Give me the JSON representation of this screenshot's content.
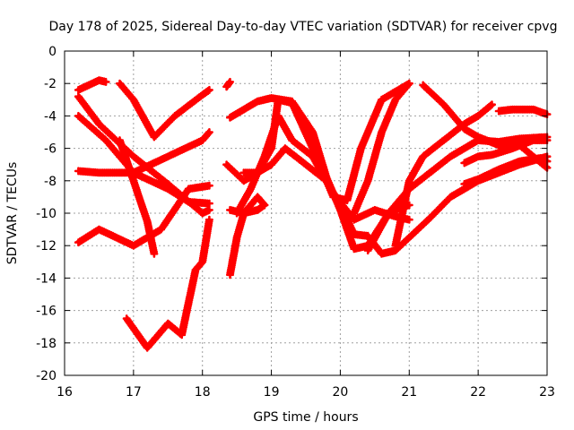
{
  "chart_data": {
    "type": "scatter",
    "title": "Day 178 of 2025, Sidereal Day-to-day VTEC variation (SDTVAR) for receiver cpvg",
    "xlabel": "GPS time / hours",
    "ylabel": "SDTVAR / TECUs",
    "xlim": [
      16,
      23
    ],
    "ylim": [
      -20,
      0
    ],
    "xticks": [
      "16",
      "17",
      "18",
      "19",
      "20",
      "21",
      "22",
      "23"
    ],
    "yticks": [
      "0",
      "-2",
      "-4",
      "-6",
      "-8",
      "-10",
      "-12",
      "-14",
      "-16",
      "-18",
      "-20"
    ],
    "xtick_values": [
      16,
      17,
      18,
      19,
      20,
      21,
      22,
      23
    ],
    "ytick_values": [
      0,
      -2,
      -4,
      -6,
      -8,
      -10,
      -12,
      -14,
      -16,
      -18,
      -20
    ],
    "grid": true,
    "marker": "+",
    "color": "#ff0000",
    "series": [
      {
        "name": "trace-1",
        "x": [
          16.2,
          16.35,
          16.5,
          16.6
        ],
        "y": [
          -2.4,
          -2.1,
          -1.8,
          -1.9
        ]
      },
      {
        "name": "trace-2",
        "x": [
          16.2,
          16.5,
          17.0,
          17.5,
          18.0,
          18.1
        ],
        "y": [
          -2.8,
          -4.5,
          -6.5,
          -8.2,
          -10.0,
          -9.8
        ]
      },
      {
        "name": "trace-3",
        "x": [
          16.2,
          16.6,
          17.0,
          17.5,
          17.8,
          18.1
        ],
        "y": [
          -4.0,
          -5.5,
          -7.5,
          -8.5,
          -9.3,
          -9.4
        ]
      },
      {
        "name": "trace-4",
        "x": [
          16.2,
          16.5,
          17.0,
          17.3,
          17.6,
          18.0,
          18.1
        ],
        "y": [
          -7.4,
          -7.5,
          -7.5,
          -6.9,
          -6.3,
          -5.5,
          -5.0
        ]
      },
      {
        "name": "trace-5",
        "x": [
          16.2,
          16.5,
          17.0,
          17.4,
          17.8,
          18.1
        ],
        "y": [
          -11.8,
          -11.0,
          -12.0,
          -11.0,
          -8.5,
          -8.3
        ]
      },
      {
        "name": "trace-6",
        "x": [
          16.8,
          17.0,
          17.3,
          17.6,
          18.0,
          18.1
        ],
        "y": [
          -2.0,
          -3.0,
          -5.3,
          -4.0,
          -2.7,
          -2.4
        ]
      },
      {
        "name": "trace-7",
        "x": [
          16.8,
          17.0,
          17.2,
          17.3
        ],
        "y": [
          -5.5,
          -8.0,
          -10.5,
          -12.5
        ]
      },
      {
        "name": "trace-8",
        "x": [
          16.9,
          17.2,
          17.5,
          17.7,
          17.9,
          18.0,
          18.1
        ],
        "y": [
          -16.5,
          -18.3,
          -16.8,
          -17.5,
          -13.5,
          -13.0,
          -10.4
        ]
      },
      {
        "name": "trace-9",
        "x": [
          18.35,
          18.4
        ],
        "y": [
          -2.2,
          -1.9
        ]
      },
      {
        "name": "trace-10",
        "x": [
          18.4,
          18.6,
          18.8,
          19.0,
          19.3,
          19.6,
          19.8,
          20.0,
          20.2,
          20.4,
          20.7,
          20.9,
          21.0
        ],
        "y": [
          -4.1,
          -3.6,
          -3.1,
          -2.9,
          -3.1,
          -5.0,
          -7.8,
          -9.8,
          -12.2,
          -12.0,
          -10.0,
          -9.6,
          -9.5
        ]
      },
      {
        "name": "trace-11",
        "x": [
          18.35,
          18.6,
          18.8,
          19.0,
          19.1,
          19.3,
          19.6,
          19.9,
          20.1,
          20.3,
          20.6,
          21.0
        ],
        "y": [
          -7.0,
          -8.0,
          -7.5,
          -6.0,
          -3.0,
          -3.2,
          -6.0,
          -9.0,
          -9.2,
          -6.0,
          -3.0,
          -2.0
        ]
      },
      {
        "name": "trace-12",
        "x": [
          18.4,
          18.6,
          18.8,
          18.9
        ],
        "y": [
          -9.8,
          -10.0,
          -9.0,
          -9.5
        ]
      },
      {
        "name": "trace-13",
        "x": [
          18.4,
          18.5,
          18.6,
          18.8,
          18.9
        ],
        "y": [
          -13.8,
          -11.5,
          -10.0,
          -9.8,
          -9.5
        ]
      },
      {
        "name": "trace-14",
        "x": [
          18.5,
          18.7,
          18.9,
          19.1,
          19.3,
          19.6,
          19.9,
          20.2,
          20.5,
          20.8,
          21.0
        ],
        "y": [
          -10.0,
          -8.5,
          -6.5,
          -4.0,
          -5.5,
          -6.5,
          -8.8,
          -10.4,
          -9.8,
          -10.2,
          -10.4
        ]
      },
      {
        "name": "trace-15",
        "x": [
          18.6,
          18.8,
          19.0,
          19.2,
          19.5,
          19.8,
          20.0,
          20.2,
          20.4,
          20.6,
          20.8,
          21.0,
          21.3,
          21.6,
          22.0,
          22.3,
          22.6,
          23.0
        ],
        "y": [
          -7.5,
          -7.5,
          -7.0,
          -6.0,
          -7.0,
          -8.0,
          -9.5,
          -11.3,
          -11.4,
          -12.5,
          -12.3,
          -11.5,
          -10.3,
          -9.0,
          -8.0,
          -7.5,
          -7.0,
          -6.5
        ]
      },
      {
        "name": "trace-16",
        "x": [
          20.2,
          20.4,
          20.6,
          20.8,
          21.0
        ],
        "y": [
          -10.0,
          -8.0,
          -5.0,
          -3.0,
          -2.0
        ]
      },
      {
        "name": "trace-17",
        "x": [
          20.4,
          20.7,
          21.0,
          21.3,
          21.6,
          22.0,
          22.3,
          22.6,
          23.0
        ],
        "y": [
          -12.3,
          -10.0,
          -8.5,
          -7.5,
          -6.5,
          -5.5,
          -5.6,
          -5.4,
          -5.3
        ]
      },
      {
        "name": "trace-18",
        "x": [
          20.8,
          21.0,
          21.2,
          21.5,
          21.8,
          22.0,
          22.2
        ],
        "y": [
          -12.0,
          -8.0,
          -6.5,
          -5.5,
          -4.5,
          -4.0,
          -3.3
        ]
      },
      {
        "name": "trace-19",
        "x": [
          21.2,
          21.5,
          21.8,
          22.0,
          22.3,
          22.6,
          22.8,
          23.0
        ],
        "y": [
          -2.1,
          -3.3,
          -4.8,
          -5.3,
          -5.8,
          -5.8,
          -6.5,
          -7.2
        ]
      },
      {
        "name": "trace-20",
        "x": [
          22.3,
          22.5,
          22.8,
          23.0
        ],
        "y": [
          -3.7,
          -3.6,
          -3.6,
          -3.9
        ]
      },
      {
        "name": "trace-21",
        "x": [
          21.8,
          22.0,
          22.2,
          22.5,
          22.8,
          23.0
        ],
        "y": [
          -6.9,
          -6.5,
          -6.4,
          -6.0,
          -5.5,
          -5.5
        ]
      },
      {
        "name": "trace-22",
        "x": [
          21.8,
          22.0,
          22.3,
          22.6,
          22.9,
          23.0
        ],
        "y": [
          -8.2,
          -7.9,
          -7.3,
          -6.8,
          -6.6,
          -6.8
        ]
      }
    ]
  }
}
